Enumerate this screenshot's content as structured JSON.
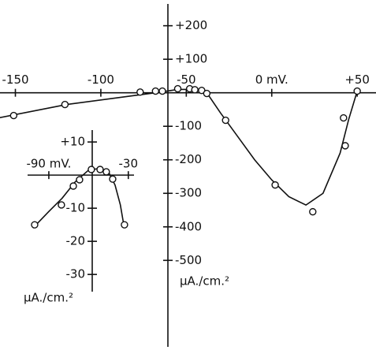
{
  "chart_data": [
    {
      "type": "line",
      "y_label": "μA./cm.²",
      "xlim": [
        -159,
        61
      ],
      "ylim": [
        -758,
        265
      ],
      "xticks": [
        -150,
        -100,
        -50,
        {
          "value": 0,
          "label": "0 mV."
        },
        {
          "value": 50,
          "label": "+50"
        }
      ],
      "yticks": [
        {
          "value": 200,
          "label": "+200"
        },
        {
          "value": 100,
          "label": "+100"
        },
        -100,
        -200,
        -300,
        -400,
        -500
      ],
      "series": [
        {
          "style": "line",
          "color": "#111",
          "x": [
            -160,
            -120,
            -80,
            -65,
            -55,
            -45,
            -38,
            -30,
            -20,
            -10,
            0,
            10,
            20,
            30,
            40,
            45,
            50
          ],
          "values": [
            -75,
            -35,
            -8,
            2,
            10,
            10,
            0,
            -60,
            -130,
            -200,
            -260,
            -310,
            -335,
            -300,
            -180,
            -80,
            5
          ]
        },
        {
          "style": "open-circle",
          "color": "#111",
          "x": [
            -151,
            -121,
            -77,
            -68,
            -64,
            -55,
            -48,
            -45,
            -41,
            -38,
            -27,
            2,
            24,
            42,
            43,
            50
          ],
          "values": [
            -68,
            -35,
            2,
            5,
            5,
            12,
            12,
            9,
            7,
            -2,
            -82,
            -275,
            -355,
            -75,
            -158,
            5
          ]
        }
      ]
    },
    {
      "type": "line",
      "y_label": "μA./cm.²",
      "xlim": [
        -109,
        -25.7
      ],
      "ylim": [
        -35.2,
        13.6
      ],
      "xticks": [
        {
          "value": -90,
          "label": "-90 mV."
        },
        -30
      ],
      "yticks": [
        {
          "value": 10,
          "label": "+10"
        },
        -10,
        -20,
        -30
      ],
      "series": [
        {
          "style": "line",
          "color": "#111",
          "x": [
            -102,
            -90,
            -80,
            -70,
            -60,
            -52,
            -45,
            -40,
            -36,
            -33
          ],
          "values": [
            -16,
            -11,
            -7,
            -2,
            1.5,
            2,
            1,
            -3,
            -9,
            -16
          ]
        },
        {
          "style": "open-circle",
          "color": "#111",
          "x": [
            -100.7,
            -80.5,
            -71.5,
            -66.8,
            -57.9,
            -51.3,
            -46.6,
            -41.8,
            -32.9
          ],
          "values": [
            -15,
            -9,
            -3.3,
            -1.4,
            1.7,
            1.7,
            1,
            -1.2,
            -15
          ]
        }
      ]
    }
  ]
}
